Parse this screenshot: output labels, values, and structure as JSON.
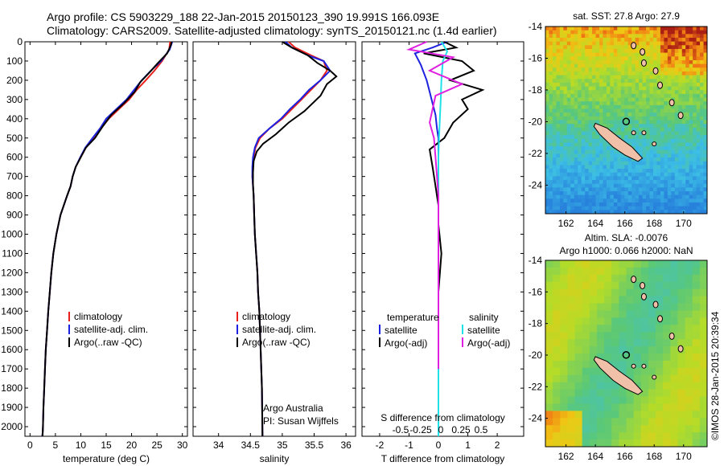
{
  "header": {
    "line1": "Argo profile: CS 5903229_188 22-Jan-2015 20150123_390 19.991S 166.093E",
    "line2": "Climatology: CARS2009. Satellite-adjusted climatology: synTS_20150121.nc (1.4d earlier)"
  },
  "colors": {
    "climatology": "#e8201c",
    "satellite": "#1c22e0",
    "argo": "#000000",
    "salinity_satellite": "#20e0e8",
    "salinity_argo": "#e020e0"
  },
  "depth_axis": {
    "ylim": [
      0,
      2050
    ],
    "ticks": [
      0,
      100,
      200,
      300,
      400,
      500,
      600,
      700,
      800,
      900,
      1000,
      1100,
      1200,
      1300,
      1400,
      1500,
      1600,
      1700,
      1800,
      1900,
      2000
    ]
  },
  "chart_data": [
    {
      "type": "line",
      "xlabel": "temperature (deg C)",
      "xlim": [
        -1,
        31
      ],
      "xticks": [
        0,
        5,
        10,
        15,
        20,
        25,
        30
      ],
      "legend": [
        "climatology",
        "satellite-adj. clim.",
        "Argo(..raw -QC)"
      ],
      "series": [
        {
          "name": "climatology",
          "x": [
            27.6,
            27.4,
            26.0,
            24.5,
            22.8,
            21.0,
            19.5,
            17.5,
            15.5,
            14.0,
            12.5,
            11.0,
            10.0,
            9.0,
            8.4,
            8.0,
            7.3,
            6.0,
            5.2,
            4.6,
            4.2,
            3.9,
            3.6,
            3.35,
            3.1,
            2.95,
            2.8,
            2.65,
            2.55,
            2.5,
            2.4
          ],
          "y": [
            0,
            40,
            100,
            150,
            200,
            250,
            300,
            350,
            400,
            450,
            500,
            550,
            600,
            650,
            700,
            750,
            800,
            900,
            1000,
            1100,
            1200,
            1300,
            1400,
            1500,
            1600,
            1700,
            1800,
            1900,
            2000,
            2030,
            2050
          ]
        },
        {
          "name": "satellite-adj. clim.",
          "x": [
            28.0,
            27.5,
            25.8,
            23.8,
            22.0,
            20.5,
            19.0,
            17.0,
            15.0,
            13.8,
            12.3,
            10.9,
            9.9,
            9.0,
            8.4,
            8.0,
            7.3,
            6.0,
            5.2,
            4.6,
            4.2,
            3.9,
            3.6,
            3.35,
            3.1,
            2.95,
            2.8,
            2.65,
            2.55,
            2.5,
            2.4
          ],
          "y": [
            0,
            40,
            100,
            150,
            200,
            250,
            300,
            350,
            400,
            450,
            500,
            550,
            600,
            650,
            700,
            750,
            800,
            900,
            1000,
            1100,
            1200,
            1300,
            1400,
            1500,
            1600,
            1700,
            1800,
            1900,
            2000,
            2030,
            2050
          ]
        },
        {
          "name": "Argo(..raw -QC)",
          "x": [
            27.9,
            27.7,
            27.0,
            25.2,
            23.5,
            21.7,
            20.6,
            18.5,
            16.0,
            14.3,
            12.8,
            11.0,
            10.0,
            9.0,
            8.4,
            8.0,
            7.3,
            6.0,
            5.2,
            4.6,
            4.2,
            3.9,
            3.6,
            3.35,
            3.1,
            2.95,
            2.8,
            2.65,
            2.55,
            2.5,
            2.45
          ],
          "y": [
            0,
            20,
            60,
            110,
            160,
            210,
            260,
            320,
            380,
            440,
            500,
            550,
            600,
            650,
            700,
            750,
            800,
            900,
            1000,
            1100,
            1200,
            1300,
            1400,
            1500,
            1600,
            1700,
            1800,
            1900,
            2000,
            2030,
            2050
          ]
        }
      ]
    },
    {
      "type": "line",
      "xlabel": "salinity",
      "xlim": [
        33.6,
        36.15
      ],
      "xticks": [
        34,
        34.5,
        35,
        35.5,
        36
      ],
      "legend": [
        "climatology",
        "satellite-adj. clim.",
        "Argo(..raw -QC)"
      ],
      "annotation": [
        "Argo Australia",
        "PI: Susan Wijffels"
      ],
      "series": [
        {
          "name": "climatology",
          "x": [
            35.1,
            35.2,
            35.45,
            35.65,
            35.7,
            35.6,
            35.45,
            35.3,
            35.15,
            35.0,
            34.8,
            34.65,
            34.58,
            34.55,
            34.54,
            34.53,
            34.54,
            34.55,
            34.56,
            34.57,
            34.59,
            34.61,
            34.62,
            34.64,
            34.65,
            34.66,
            34.67,
            34.68,
            34.69
          ],
          "y": [
            0,
            30,
            70,
            100,
            150,
            200,
            250,
            300,
            350,
            400,
            450,
            500,
            550,
            600,
            650,
            700,
            750,
            800,
            900,
            1000,
            1100,
            1200,
            1300,
            1400,
            1500,
            1600,
            1700,
            1800,
            2050
          ]
        },
        {
          "name": "satellite-adj. clim.",
          "x": [
            35.05,
            35.15,
            35.4,
            35.65,
            35.75,
            35.6,
            35.42,
            35.28,
            35.12,
            34.98,
            34.8,
            34.63,
            34.57,
            34.54,
            34.53,
            34.53,
            34.54,
            34.55,
            34.56,
            34.57,
            34.59,
            34.61,
            34.62,
            34.64,
            34.65,
            34.66,
            34.67,
            34.68,
            34.69
          ],
          "y": [
            0,
            30,
            70,
            100,
            150,
            200,
            250,
            300,
            350,
            400,
            450,
            500,
            550,
            600,
            650,
            700,
            750,
            800,
            900,
            1000,
            1100,
            1200,
            1300,
            1400,
            1500,
            1600,
            1700,
            1800,
            2050
          ]
        },
        {
          "name": "Argo(..raw -QC)",
          "x": [
            35.0,
            35.15,
            35.4,
            35.55,
            35.75,
            35.85,
            35.7,
            35.6,
            35.35,
            35.1,
            34.9,
            34.7,
            34.6,
            34.55,
            34.54,
            34.54,
            34.55,
            34.56,
            34.57,
            34.59,
            34.61,
            34.62,
            34.64,
            34.65,
            34.66,
            34.67,
            34.68,
            34.69
          ],
          "y": [
            0,
            30,
            70,
            110,
            150,
            180,
            220,
            280,
            360,
            420,
            480,
            530,
            570,
            620,
            680,
            740,
            800,
            900,
            1000,
            1100,
            1200,
            1300,
            1400,
            1500,
            1600,
            1700,
            1800,
            2050
          ]
        }
      ]
    },
    {
      "type": "line",
      "xlabel": "T difference from climatology",
      "xlabel2": "S difference from climatology",
      "xlim": [
        -2.6,
        2.9
      ],
      "xticks": [
        -2,
        -1,
        0,
        1,
        2
      ],
      "x2ticks": [
        -0.5,
        -0.25,
        0,
        0.25,
        0.5
      ],
      "legend_title_t": "temperature",
      "legend_title_s": "salinity",
      "legend_t": [
        "satellite",
        "Argo(-adj)"
      ],
      "legend_s": [
        "satellite",
        "Argo(-adj)"
      ],
      "series": [
        {
          "name": "temperature satellite",
          "x": [
            0.3,
            -0.2,
            -0.8,
            -0.6,
            -0.4,
            -0.3,
            -0.2,
            -0.1,
            -0.05,
            0,
            0,
            0,
            0,
            0,
            0,
            0,
            0,
            0,
            0,
            0,
            0,
            0
          ],
          "y": [
            0,
            30,
            60,
            120,
            200,
            260,
            320,
            380,
            450,
            500,
            600,
            700,
            800,
            900,
            1000,
            1200,
            1400,
            1600,
            1800,
            1900,
            2000,
            2050
          ]
        },
        {
          "name": "temperature Argo(-adj)",
          "x": [
            0.2,
            0.6,
            -0.5,
            0.8,
            1.2,
            0.4,
            1.5,
            0.8,
            1.0,
            0.5,
            0.2,
            -0.3,
            -0.2,
            -0.1,
            0,
            0,
            0.1,
            0,
            0,
            0,
            0,
            0
          ],
          "y": [
            0,
            30,
            60,
            100,
            150,
            200,
            250,
            300,
            350,
            420,
            500,
            560,
            650,
            750,
            850,
            950,
            1100,
            1300,
            1500,
            1700,
            1900,
            2050
          ]
        },
        {
          "name": "salinity satellite",
          "x": [
            0.1,
            0.3,
            0.15,
            0.1,
            0.08,
            0.05,
            0.02,
            0,
            0,
            0,
            0,
            0,
            0,
            0,
            0,
            0,
            0
          ],
          "y": [
            0,
            50,
            100,
            200,
            300,
            400,
            500,
            600,
            700,
            800,
            1000,
            1200,
            1400,
            1600,
            1800,
            2000,
            2050
          ]
        },
        {
          "name": "salinity Argo(-adj)",
          "x": [
            -0.4,
            -1.0,
            0.5,
            -0.3,
            0.8,
            -0.1,
            -0.2,
            -0.3,
            -0.15,
            -0.1,
            -0.05,
            0,
            0,
            0,
            0,
            0,
            0
          ],
          "y": [
            0,
            40,
            80,
            150,
            220,
            280,
            350,
            420,
            500,
            600,
            700,
            800,
            1000,
            1200,
            1400,
            1600,
            1700
          ]
        }
      ]
    },
    {
      "type": "heatmap",
      "title": "sat. SST: 27.8  Argo: 27.9",
      "xticks": [
        162,
        164,
        166,
        168,
        170
      ],
      "yticks": [
        -14,
        -16,
        -18,
        -20,
        -22,
        -24
      ],
      "xlim": [
        160.6,
        171.6
      ],
      "ylim": [
        -25.8,
        -14
      ],
      "point": [
        166.093,
        -19.991
      ]
    },
    {
      "type": "heatmap",
      "title": "Altim. SLA: -0.0076",
      "subtitle": "Argo h1000: 0.066 h2000: NaN",
      "xticks": [
        162,
        164,
        166,
        168,
        170
      ],
      "yticks": [
        -14,
        -16,
        -18,
        -20,
        -22,
        -24
      ],
      "xlim": [
        160.6,
        171.6
      ],
      "ylim": [
        -25.8,
        -14
      ],
      "point": [
        166.093,
        -19.991
      ]
    }
  ],
  "footer": {
    "watermark": "©IMOS 28-Jan-2015 20:39:34"
  }
}
